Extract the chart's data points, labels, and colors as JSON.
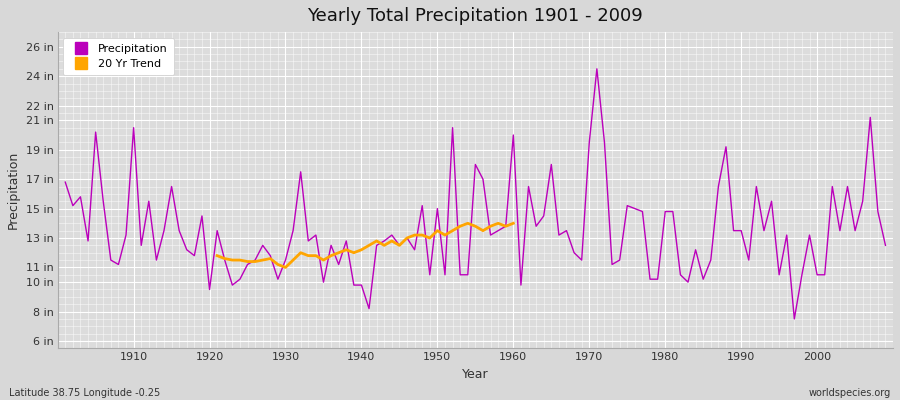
{
  "title": "Yearly Total Precipitation 1901 - 2009",
  "xlabel": "Year",
  "ylabel": "Precipitation",
  "subtitle": "Latitude 38.75 Longitude -0.25",
  "watermark": "worldspecies.org",
  "bg_color": "#d8d8d8",
  "plot_bg_color": "#dcdcdc",
  "precip_color": "#bb00bb",
  "trend_color": "#ffa500",
  "years": [
    1901,
    1902,
    1903,
    1904,
    1905,
    1906,
    1907,
    1908,
    1909,
    1910,
    1911,
    1912,
    1913,
    1914,
    1915,
    1916,
    1917,
    1918,
    1919,
    1920,
    1921,
    1922,
    1923,
    1924,
    1925,
    1926,
    1927,
    1928,
    1929,
    1930,
    1931,
    1932,
    1933,
    1934,
    1935,
    1936,
    1937,
    1938,
    1939,
    1940,
    1941,
    1942,
    1943,
    1944,
    1945,
    1946,
    1947,
    1948,
    1949,
    1950,
    1951,
    1952,
    1953,
    1954,
    1955,
    1956,
    1957,
    1958,
    1959,
    1960,
    1961,
    1962,
    1963,
    1964,
    1965,
    1966,
    1967,
    1968,
    1969,
    1970,
    1971,
    1972,
    1973,
    1974,
    1975,
    1976,
    1977,
    1978,
    1979,
    1980,
    1981,
    1982,
    1983,
    1984,
    1985,
    1986,
    1987,
    1988,
    1989,
    1990,
    1991,
    1992,
    1993,
    1994,
    1995,
    1996,
    1997,
    1998,
    1999,
    2000,
    2001,
    2002,
    2003,
    2004,
    2005,
    2006,
    2007,
    2008,
    2009
  ],
  "precip_in": [
    16.8,
    15.2,
    15.8,
    12.8,
    20.2,
    15.5,
    11.5,
    11.2,
    13.2,
    20.5,
    12.5,
    15.5,
    11.5,
    13.5,
    16.5,
    13.5,
    12.2,
    11.8,
    14.5,
    9.5,
    13.5,
    11.5,
    9.8,
    10.2,
    11.2,
    11.5,
    12.5,
    11.8,
    10.2,
    11.5,
    13.5,
    17.5,
    12.8,
    13.2,
    10.0,
    12.5,
    11.2,
    12.8,
    9.8,
    9.8,
    8.2,
    12.5,
    12.8,
    13.2,
    12.5,
    13.0,
    12.2,
    15.2,
    10.5,
    15.0,
    10.5,
    20.5,
    10.5,
    10.5,
    18.0,
    17.0,
    13.2,
    13.5,
    13.8,
    20.0,
    9.8,
    16.5,
    13.8,
    14.5,
    18.0,
    13.2,
    13.5,
    12.0,
    11.5,
    19.5,
    24.5,
    19.5,
    11.2,
    11.5,
    15.2,
    15.0,
    14.8,
    10.2,
    10.2,
    14.8,
    14.8,
    10.5,
    10.0,
    12.2,
    10.2,
    11.5,
    16.5,
    19.2,
    13.5,
    13.5,
    11.5,
    16.5,
    13.5,
    15.5,
    10.5,
    13.2,
    7.5,
    10.5,
    13.2,
    10.5,
    10.5,
    16.5,
    13.5,
    16.5,
    13.5,
    15.5,
    21.2,
    14.8,
    12.5
  ],
  "trend_years": [
    1921,
    1922,
    1923,
    1924,
    1925,
    1926,
    1927,
    1928,
    1929,
    1930,
    1931,
    1932,
    1933,
    1934,
    1935,
    1936,
    1937,
    1938,
    1939,
    1940,
    1941,
    1942,
    1943,
    1944,
    1945,
    1946,
    1947,
    1948,
    1949,
    1950,
    1951,
    1952,
    1953,
    1954,
    1955,
    1956,
    1957,
    1958,
    1959,
    1960
  ],
  "trend_vals": [
    11.8,
    11.6,
    11.5,
    11.5,
    11.4,
    11.4,
    11.5,
    11.6,
    11.2,
    11.0,
    11.5,
    12.0,
    11.8,
    11.8,
    11.5,
    11.8,
    12.0,
    12.2,
    12.0,
    12.2,
    12.5,
    12.8,
    12.5,
    12.8,
    12.5,
    13.0,
    13.2,
    13.2,
    13.0,
    13.5,
    13.2,
    13.5,
    13.8,
    14.0,
    13.8,
    13.5,
    13.8,
    14.0,
    13.8,
    14.0
  ],
  "yticks_labels": [
    "6 in",
    "8 in",
    "10 in",
    "11 in",
    "13 in",
    "15 in",
    "17 in",
    "19 in",
    "21 in",
    "22 in",
    "24 in",
    "26 in"
  ],
  "yticks_values": [
    6,
    8,
    10,
    11,
    13,
    15,
    17,
    19,
    21,
    22,
    24,
    26
  ],
  "ylim": [
    5.5,
    27.0
  ],
  "xlim": [
    1900,
    2010
  ],
  "xtick_years": [
    1910,
    1920,
    1930,
    1940,
    1950,
    1960,
    1970,
    1980,
    1990,
    2000
  ]
}
